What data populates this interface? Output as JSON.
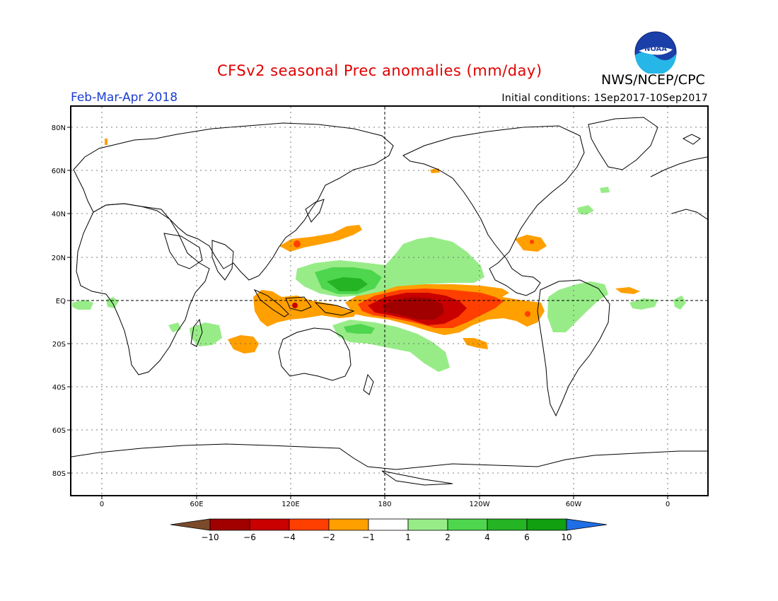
{
  "header": {
    "title": "CFSv2 seasonal Prec anomalies (mm/day)",
    "agency": "NWS/NCEP/CPC",
    "season": "Feb-Mar-Apr 2018",
    "initial_conditions": "Initial conditions: 1Sep2017-10Sep2017",
    "logo_text": "NOAA"
  },
  "map": {
    "lat_labels": [
      "80N",
      "60N",
      "40N",
      "20N",
      "EQ",
      "20S",
      "40S",
      "60S",
      "80S"
    ],
    "lon_labels": [
      "0",
      "60E",
      "120E",
      "180",
      "120W",
      "60W",
      "0"
    ],
    "grid": "dotted",
    "reference_lines": [
      "equator",
      "dateline"
    ]
  },
  "colorbar": {
    "labels": [
      "-10",
      "-6",
      "-4",
      "-2",
      "-1",
      "1",
      "2",
      "4",
      "6",
      "10"
    ],
    "colors": [
      "#7b4a2a",
      "#a00000",
      "#c80000",
      "#ff3f00",
      "#ff9f00",
      "#ffffff",
      "#98ec88",
      "#4ed64e",
      "#24b424",
      "#10a010",
      "#1e6ee6"
    ]
  },
  "anomaly_colors": {
    "dry_1": "#ff9f00",
    "dry_2": "#ff3f00",
    "dry_3": "#c80000",
    "dry_4": "#a00000",
    "wet_1": "#98ec88",
    "wet_2": "#4ed64e",
    "wet_3": "#24b424"
  }
}
